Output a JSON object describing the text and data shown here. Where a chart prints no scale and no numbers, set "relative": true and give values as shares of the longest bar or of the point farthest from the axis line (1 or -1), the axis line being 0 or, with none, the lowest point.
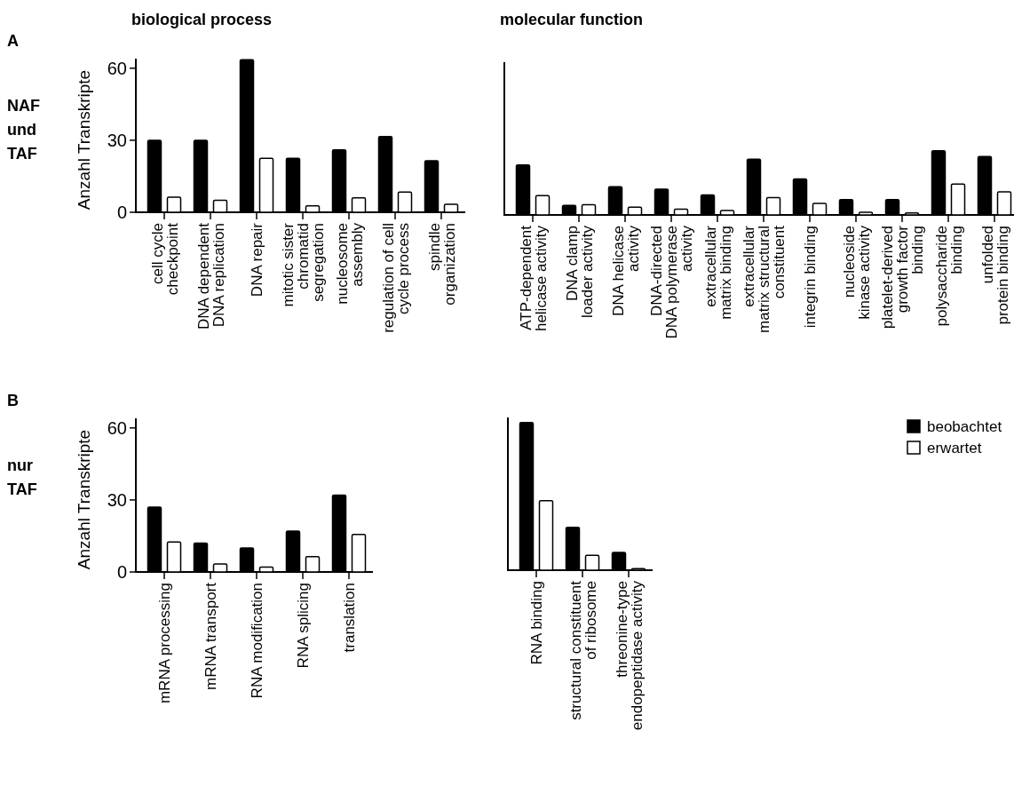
{
  "chart_data": [
    {
      "type": "bar",
      "title": "biological process",
      "ylabel": "Anzahl Transkripte",
      "annotations": [
        "A",
        "NAF und TAF"
      ],
      "categories": [
        "cell cycle\ncheckpoint",
        "DNA dependent\nDNA replication",
        "DNA repair",
        "mitotic sister\nchromatid\nsegregation",
        "nucleosome\nassembly",
        "regulation of cell\ncycle process",
        "spindle\norganization"
      ],
      "ylim": [
        0,
        64
      ],
      "yticks": [
        0,
        30,
        60
      ],
      "series": [
        {
          "color": "#000000",
          "values": [
            30,
            30,
            63.5,
            22.5,
            26,
            31.5,
            21.5
          ]
        },
        {
          "color": "#ffffff",
          "values": [
            6.3,
            5,
            22.5,
            2.7,
            6,
            8.4,
            3.3
          ]
        }
      ]
    },
    {
      "type": "bar",
      "title": "molecular function",
      "categories": [
        "ATP-dependent\nhelicase activity",
        "DNA clamp\nloader activity",
        "DNA helicase\nactivity",
        "DNA-directed\nDNA polymerase\nactivity",
        "extracellular\nmatrix binding",
        "extracellular\nmatrix structural\nconstituent",
        "integrin binding",
        "nucleoside\nkinase activity",
        "platelet-derived\ngrowth factor\nbinding",
        "polysaccharide\nbinding",
        "unfolded\nprotein binding"
      ],
      "relative": true,
      "series": [
        {
          "color": "#000000",
          "values": [
            0.78,
            0.15,
            0.44,
            0.4,
            0.31,
            0.87,
            0.56,
            0.24,
            0.24,
            1,
            0.91
          ]
        },
        {
          "color": "#ffffff",
          "values": [
            0.3,
            0.16,
            0.12,
            0.09,
            0.07,
            0.27,
            0.18,
            0.04,
            0.03,
            0.48,
            0.36
          ]
        }
      ]
    },
    {
      "type": "bar",
      "ylabel": "Anzahl Transkripte",
      "annotations": [
        "B",
        "nur TAF"
      ],
      "categories": [
        "mRNA processing",
        "mRNA transport",
        "RNA modification",
        "RNA splicing",
        "translation"
      ],
      "ylim": [
        0,
        64
      ],
      "yticks": [
        0,
        30,
        60
      ],
      "series": [
        {
          "color": "#000000",
          "values": [
            27,
            12,
            10,
            17,
            32
          ]
        },
        {
          "color": "#ffffff",
          "values": [
            12.5,
            3.3,
            2,
            6.4,
            15.6
          ]
        }
      ]
    },
    {
      "type": "bar",
      "categories": [
        "RNA binding",
        "structural constituent\nof ribosome",
        "threonine-type\nendopeptidase activity"
      ],
      "relative": true,
      "legend": "right",
      "series": [
        {
          "name": "beobachtet",
          "color": "#000000",
          "values": [
            1,
            0.29,
            0.12
          ]
        },
        {
          "name": "erwartet",
          "color": "#ffffff",
          "values": [
            0.47,
            0.1,
            0.01
          ]
        }
      ]
    }
  ]
}
